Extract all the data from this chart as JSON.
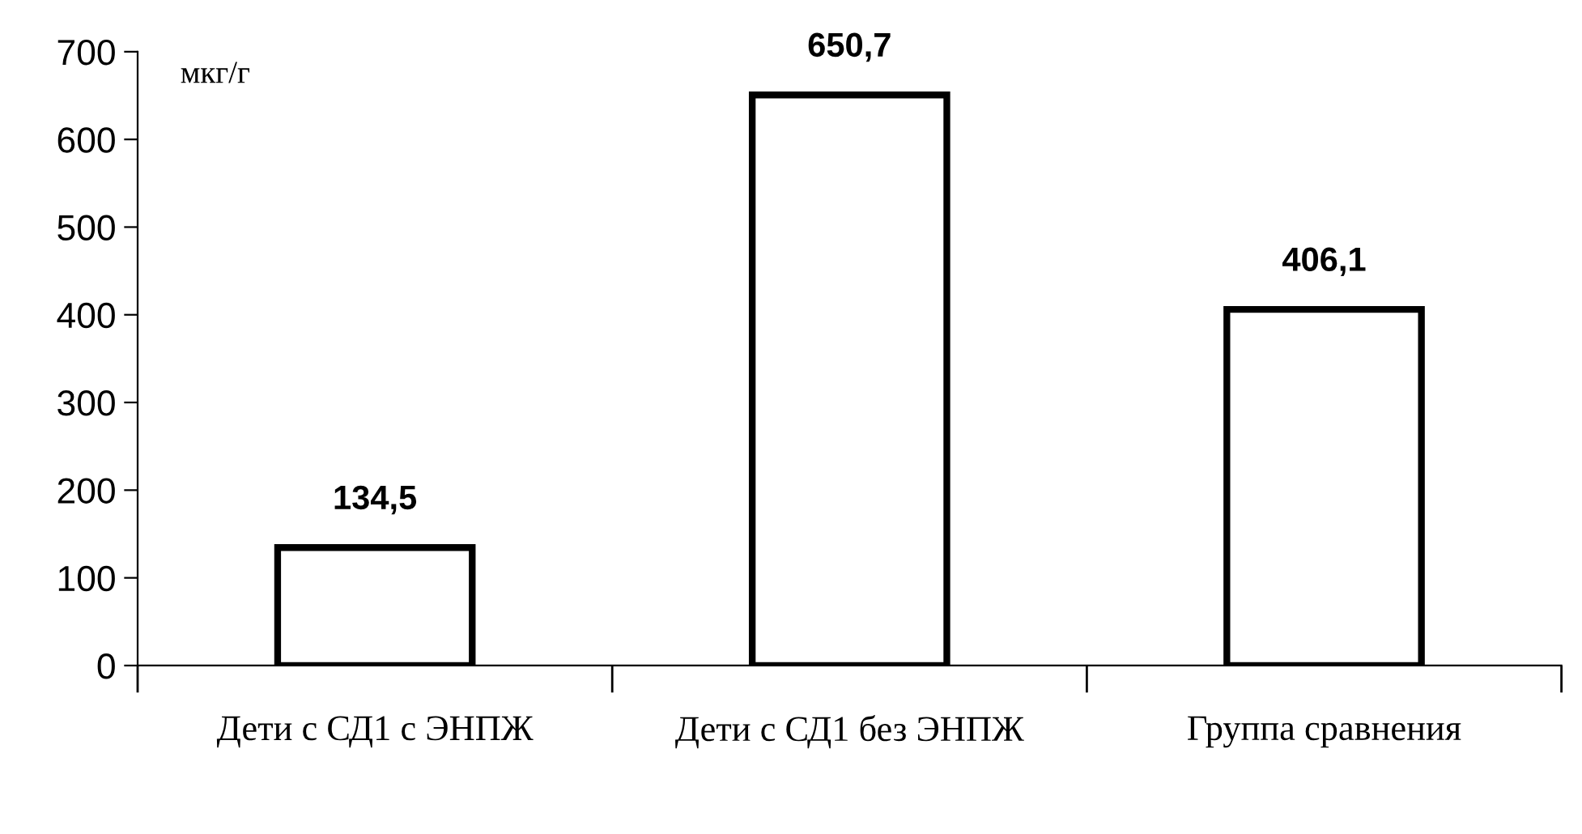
{
  "chart_data": {
    "type": "bar",
    "ylabel": "мкг/г",
    "categories": [
      "Дети с СД1 с ЭНПЖ",
      "Дети с СД1 без ЭНПЖ",
      "Группа сравнения"
    ],
    "values": [
      134.5,
      650.7,
      406.1
    ],
    "value_labels": [
      "134,5",
      "650,7",
      "406,1"
    ],
    "color": "#ffffff",
    "ylim": [
      0,
      700
    ],
    "yticks": [
      0,
      100,
      200,
      300,
      400,
      500,
      600,
      700
    ],
    "grid": false,
    "legend": false
  }
}
